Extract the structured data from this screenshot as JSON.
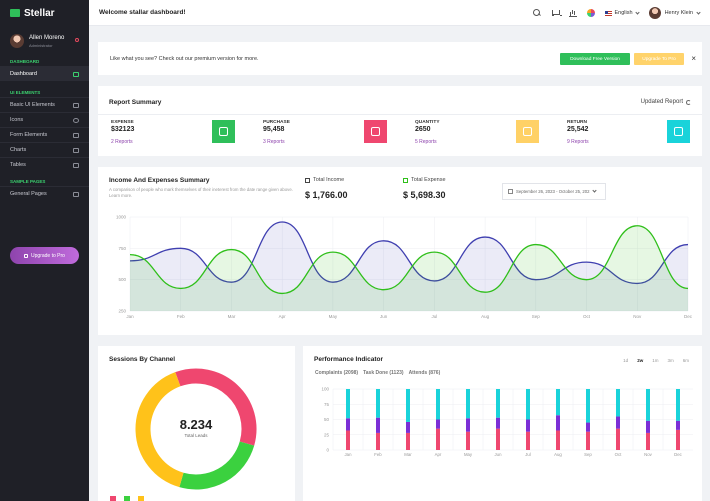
{
  "brand": {
    "name": "Stellar"
  },
  "profile": {
    "name": "Allen Moreno",
    "role": "Administrator"
  },
  "sidebar": {
    "sections": [
      {
        "label": "DASHBOARD",
        "items": [
          {
            "label": "Dashboard",
            "icon": "monitor-icon",
            "active": true
          }
        ]
      },
      {
        "label": "UI ELEMENTS",
        "items": [
          {
            "label": "Basic UI Elements",
            "icon": "layers-icon"
          },
          {
            "label": "Icons",
            "icon": "globe-icon"
          },
          {
            "label": "Form Elements",
            "icon": "form-icon"
          },
          {
            "label": "Charts",
            "icon": "bar-chart-icon"
          },
          {
            "label": "Tables",
            "icon": "grid-icon"
          }
        ]
      },
      {
        "label": "SAMPLE PAGES",
        "items": [
          {
            "label": "General Pages",
            "icon": "file-icon"
          }
        ]
      }
    ],
    "upgrade_label": "Upgrade to Pro"
  },
  "topbar": {
    "welcome": "Welcome stallar dashboard!",
    "language": "English",
    "user": "Henry Klein"
  },
  "banner": {
    "text": "Like what you see? Check out our premium version for more.",
    "download_label": "Download Free Version",
    "upgrade_label": "Upgrade To Pro",
    "close": "×"
  },
  "report": {
    "title": "Report Summary",
    "updated_label": "Updated Report",
    "stats": [
      {
        "label": "EXPENSE",
        "value": "$32123",
        "link": "2 Reports",
        "color": "#2fbf5a",
        "icon": "rocket-icon"
      },
      {
        "label": "PURCHASE",
        "value": "95,458",
        "link": "3 Reports",
        "color": "#ef476f",
        "icon": "briefcase-icon"
      },
      {
        "label": "QUANTITY",
        "value": "2650",
        "link": "5 Reports",
        "color": "#ffd166",
        "icon": "shield-icon"
      },
      {
        "label": "RETURN",
        "value": "25,542",
        "link": "9 Reports",
        "color": "#19d3da",
        "icon": "diamond-icon"
      }
    ]
  },
  "income": {
    "title": "Income And Expenses Summary",
    "subtitle": "A comparison of people who mark themselves of their ineterest from the date range given above. Learn more.",
    "total_income_label": "Total Income",
    "total_income": "$ 1,766.00",
    "total_expense_label": "Total Expense",
    "total_expense": "$ 5,698.30",
    "date_range": "September 26, 2023 - October 25, 202"
  },
  "sessions": {
    "title": "Sessions By Channel",
    "center_value": "8.234",
    "center_label": "Total Leads"
  },
  "performance": {
    "title": "Performance Indicator",
    "tabs": [
      "1d",
      "2w",
      "1m",
      "3m",
      "6m"
    ],
    "active_tab": "2w",
    "complaints": "Complaints (2098)",
    "task_done": "Task Done (1123)",
    "attends": "Attends (876)"
  },
  "chart_data": [
    {
      "type": "area",
      "categories": [
        "Jan",
        "Feb",
        "Mar",
        "Apr",
        "May",
        "Jun",
        "Jul",
        "Aug",
        "Sep",
        "Oct",
        "Nov",
        "Dec"
      ],
      "ylim": [
        250,
        1000
      ],
      "yticks": [
        250,
        500,
        750,
        1000
      ],
      "colors": [
        "#3f3fb0",
        "#2fbf1a"
      ],
      "series": [
        {
          "values": [
            650,
            750,
            480,
            960,
            480,
            810,
            490,
            840,
            500,
            640,
            470,
            780
          ]
        },
        {
          "values": [
            700,
            430,
            740,
            390,
            720,
            420,
            720,
            400,
            780,
            500,
            930,
            430
          ]
        }
      ]
    },
    {
      "type": "pie",
      "values": [
        35,
        25,
        40
      ],
      "colors": [
        "#ef476f",
        "#3bd13f",
        "#ffc21a"
      ]
    },
    {
      "type": "bar",
      "categories": [
        "Jan",
        "Feb",
        "Mar",
        "Apr",
        "May",
        "Jun",
        "Jul",
        "Aug",
        "Sep",
        "Oct",
        "Nov",
        "Dec"
      ],
      "ylim": [
        0,
        100
      ],
      "yticks": [
        0,
        25,
        50,
        75,
        100
      ],
      "colors": [
        "#ef476f",
        "#7b2fd6",
        "#19d3da"
      ],
      "series": [
        {
          "values": [
            32,
            28,
            28,
            35,
            30,
            35,
            30,
            32,
            30,
            35,
            28,
            33
          ]
        },
        {
          "values": [
            20,
            25,
            18,
            15,
            22,
            18,
            20,
            25,
            15,
            20,
            20,
            15
          ]
        },
        {
          "values": [
            48,
            47,
            54,
            50,
            48,
            47,
            50,
            43,
            55,
            45,
            52,
            52
          ]
        }
      ]
    }
  ]
}
